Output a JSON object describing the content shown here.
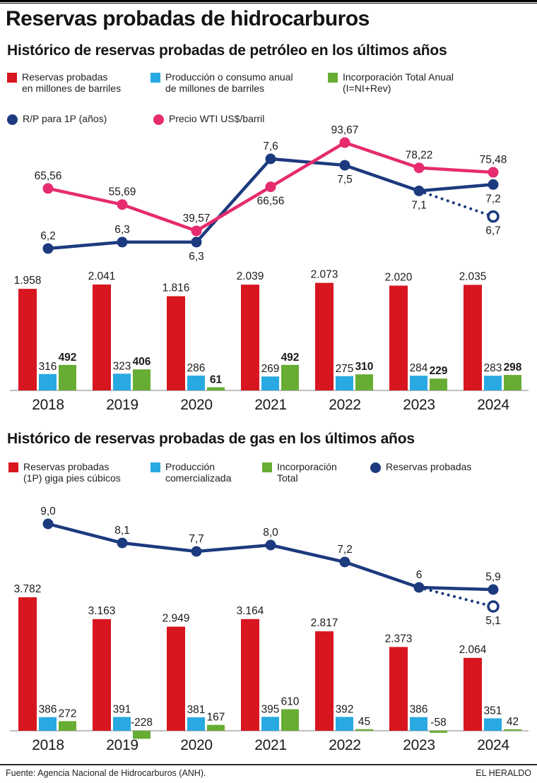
{
  "page": {
    "title": "Reservas probadas de hidrocarburos",
    "source": "Fuente: Agencia Nacional de Hidrocarburos (ANH).",
    "credit": "EL HERALDO"
  },
  "colors": {
    "red": "#d7161f",
    "blue": "#29a9e1",
    "green": "#67ac33",
    "navy": "#1c3a7e",
    "pink": "#e62b6e",
    "axis": "#999999"
  },
  "chart_data": [
    {
      "id": "oil",
      "type": "bar+line",
      "title": "Histórico de reservas probadas de petróleo en los últimos años",
      "categories": [
        "2018",
        "2019",
        "2020",
        "2021",
        "2022",
        "2023",
        "2024"
      ],
      "legend_rows": [
        {
          "items": [
            {
              "marker": "square",
              "color": "red",
              "lines": [
                "Reservas probadas",
                "en millones de barriles"
              ]
            },
            {
              "marker": "square",
              "color": "blue",
              "lines": [
                "Producción o consumo anual",
                "de millones de barriles"
              ]
            },
            {
              "marker": "square",
              "color": "green",
              "lines": [
                "Incorporación Total Anual",
                "(I=NI+Rev)"
              ]
            }
          ]
        },
        {
          "items": [
            {
              "marker": "circle",
              "color": "navy",
              "lines": [
                "R/P para 1P (años)"
              ]
            },
            {
              "marker": "circle",
              "color": "pink",
              "lines": [
                "Precio WTI US$/barril"
              ]
            }
          ]
        }
      ],
      "bar_series": [
        {
          "name": "Reservas probadas en millones de barriles",
          "color": "red",
          "values": [
            1958,
            2041,
            1816,
            2039,
            2073,
            2020,
            2035
          ],
          "labels": [
            "1.958",
            "2.041",
            "1.816",
            "2.039",
            "2.073",
            "2.020",
            "2.035"
          ],
          "bold_labels": false
        },
        {
          "name": "Producción o consumo anual de millones de barriles",
          "color": "blue",
          "values": [
            316,
            323,
            286,
            269,
            275,
            284,
            283
          ],
          "labels": [
            "316",
            "323",
            "286",
            "269",
            "275",
            "284",
            "283"
          ],
          "bold_labels": false
        },
        {
          "name": "Incorporación Total Anual (I=NI+Rev)",
          "color": "green",
          "values": [
            492,
            406,
            61,
            492,
            310,
            229,
            298
          ],
          "labels": [
            "492",
            "406",
            "61",
            "492",
            "310",
            "229",
            "298"
          ],
          "bold_labels": true
        }
      ],
      "line_series": [
        {
          "name": "R/P para 1P (años)",
          "color": "navy",
          "values": [
            6.2,
            6.3,
            6.3,
            7.6,
            7.5,
            7.1,
            7.2
          ],
          "labels": [
            "6,2",
            "6,3",
            "6,3",
            "7,6",
            "7,5",
            "7,1",
            "7,2"
          ],
          "label_pos": [
            "above",
            "above",
            "below",
            "above",
            "below",
            "below",
            "below"
          ],
          "projection": {
            "from_index": 5,
            "value": 6.7,
            "label": "6,7"
          }
        },
        {
          "name": "Precio WTI US$/barril",
          "color": "pink",
          "values": [
            65.56,
            55.69,
            39.57,
            66.56,
            93.67,
            78.22,
            75.48
          ],
          "labels": [
            "65,56",
            "55,69",
            "39,57",
            "66,56",
            "93,67",
            "78,22",
            "75,48"
          ],
          "label_pos": [
            "above",
            "above",
            "above",
            "below",
            "above",
            "above",
            "above"
          ]
        }
      ]
    },
    {
      "id": "gas",
      "type": "bar+line",
      "title": "Histórico de reservas probadas de gas en los últimos años",
      "categories": [
        "2018",
        "2019",
        "2020",
        "2021",
        "2022",
        "2023",
        "2024"
      ],
      "legend_rows": [
        {
          "items": [
            {
              "marker": "square",
              "color": "red",
              "lines": [
                "Reservas probadas",
                "(1P) giga pies cúbicos"
              ]
            },
            {
              "marker": "square",
              "color": "blue",
              "lines": [
                "Producción",
                "comercializada"
              ]
            },
            {
              "marker": "square",
              "color": "green",
              "lines": [
                "Incorporación",
                "Total"
              ]
            },
            {
              "marker": "circle",
              "color": "navy",
              "lines": [
                "Reservas probadas"
              ]
            }
          ]
        }
      ],
      "bar_series": [
        {
          "name": "Reservas probadas (1P) giga pies cúbicos",
          "color": "red",
          "values": [
            3782,
            3163,
            2949,
            3164,
            2817,
            2373,
            2064
          ],
          "labels": [
            "3.782",
            "3.163",
            "2.949",
            "3.164",
            "2.817",
            "2.373",
            "2.064"
          ],
          "bold_labels": false
        },
        {
          "name": "Producción comercializada",
          "color": "blue",
          "values": [
            386,
            391,
            381,
            395,
            392,
            386,
            351
          ],
          "labels": [
            "386",
            "391",
            "381",
            "395",
            "392",
            "386",
            "351"
          ],
          "bold_labels": false
        },
        {
          "name": "Incorporación Total",
          "color": "green",
          "values": [
            272,
            -228,
            167,
            610,
            45,
            -58,
            42
          ],
          "labels": [
            "272",
            "-228",
            "167",
            "610",
            "45",
            "-58",
            "42"
          ],
          "bold_labels": false
        }
      ],
      "line_series": [
        {
          "name": "Reservas probadas",
          "color": "navy",
          "values": [
            9.0,
            8.1,
            7.7,
            8.0,
            7.2,
            6,
            5.9
          ],
          "labels": [
            "9,0",
            "8,1",
            "7,7",
            "8,0",
            "7,2",
            "6",
            "5,9"
          ],
          "label_pos": [
            "above",
            "above",
            "above",
            "above",
            "above",
            "above",
            "above"
          ],
          "projection": {
            "from_index": 5,
            "value": 5.1,
            "label": "5,1"
          }
        }
      ]
    }
  ]
}
